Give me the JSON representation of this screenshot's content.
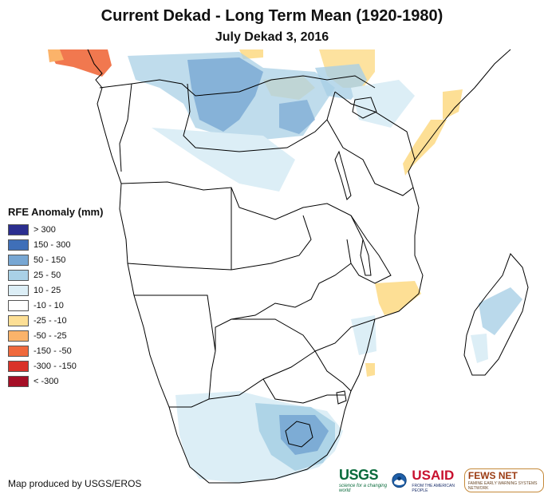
{
  "title": "Current Dekad - Long Term Mean (1920-1980)",
  "subtitle": "July Dekad 3, 2016",
  "legend": {
    "title": "RFE Anomaly (mm)",
    "items": [
      {
        "label": "> 300",
        "color": "#2b2e8f"
      },
      {
        "label": "150 - 300",
        "color": "#3f6fb8"
      },
      {
        "label": "50 - 150",
        "color": "#78a7d3"
      },
      {
        "label": "25 - 50",
        "color": "#a9d0e6"
      },
      {
        "label": "10 - 25",
        "color": "#dceef6"
      },
      {
        "label": "-10 - 10",
        "color": "#ffffff"
      },
      {
        "label": "-25 - -10",
        "color": "#fddf95"
      },
      {
        "label": "-50 - -25",
        "color": "#fbb36a"
      },
      {
        "label": "-150 - -50",
        "color": "#f0693c"
      },
      {
        "label": "-300 - -150",
        "color": "#d93229"
      },
      {
        "label": "< -300",
        "color": "#a50f26"
      }
    ]
  },
  "credit": "Map produced by USGS/EROS",
  "logos": {
    "usgs": "USGS",
    "usgs_tagline": "science for a changing world",
    "noaa": "NOAA",
    "usaid_prefix": "US",
    "usaid_suffix": "AID",
    "usaid_tagline": "FROM THE AMERICAN PEOPLE",
    "fews": "FEWS NET",
    "fews_tagline": "FAMINE EARLY WARNING SYSTEMS NETWORK"
  }
}
